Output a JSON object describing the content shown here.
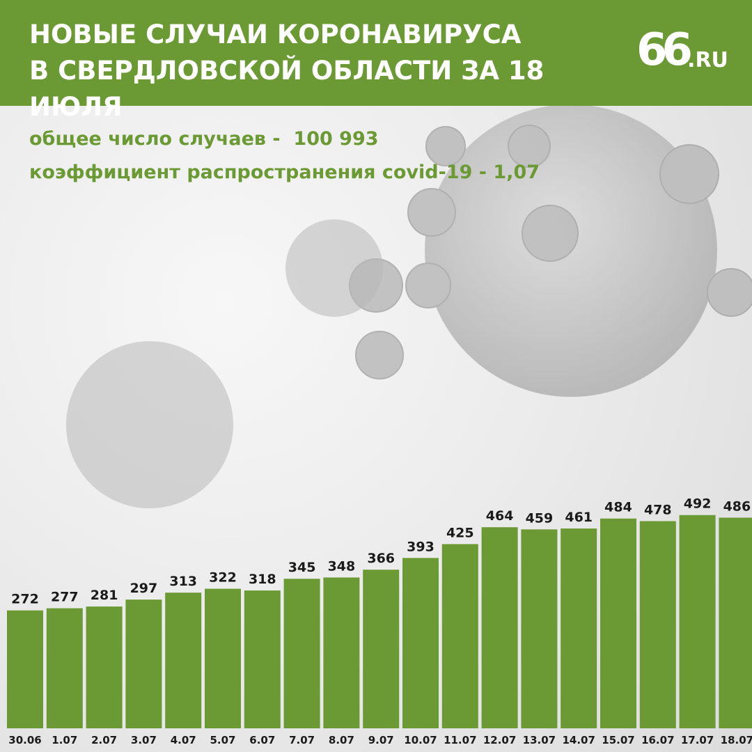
{
  "header": {
    "title_line1": "НОВЫЕ СЛУЧАИ КОРОНАВИРУСА",
    "title_line2": "В СВЕРДЛОВСКОЙ ОБЛАСТИ ЗА 18 ИЮЛЯ",
    "logo_number": "66",
    "logo_suffix": ".RU"
  },
  "stats": {
    "total_label": "общее число случаев -",
    "total_value": "100 993",
    "rt_label": "коэффициент распространения covid-19 -",
    "rt_value": "1,07"
  },
  "colors": {
    "brand_green": "#6b9a34",
    "bar_green": "#6b9a34",
    "header_text": "#ffffff"
  },
  "chart_data": {
    "type": "bar",
    "categories": [
      "30.06",
      "1.07",
      "2.07",
      "3.07",
      "4.07",
      "5.07",
      "6.07",
      "7.07",
      "8.07",
      "9.07",
      "10.07",
      "11.07",
      "12.07",
      "13.07",
      "14.07",
      "15.07",
      "16.07",
      "17.07",
      "18.07"
    ],
    "values": [
      272,
      277,
      281,
      297,
      313,
      322,
      318,
      345,
      348,
      366,
      393,
      425,
      464,
      459,
      461,
      484,
      478,
      492,
      486
    ],
    "grid": false,
    "legend": "none"
  }
}
